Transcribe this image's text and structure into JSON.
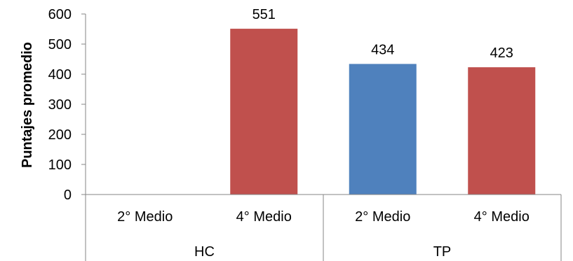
{
  "chart_data": {
    "type": "bar",
    "ylabel": "Puntajes promedio",
    "xlabel": "",
    "ylim": [
      0,
      600
    ],
    "yticks": [
      0,
      100,
      200,
      300,
      400,
      500,
      600
    ],
    "grid": false,
    "legend": "none",
    "groups": [
      "HC",
      "TP"
    ],
    "categories": [
      "2° Medio",
      "4° Medio",
      "2° Medio",
      "4° Medio"
    ],
    "category_group": [
      "HC",
      "HC",
      "TP",
      "TP"
    ],
    "values": [
      null,
      551,
      434,
      423
    ],
    "data_labels": [
      "",
      "551",
      "434",
      "423"
    ],
    "bar_colors": [
      "#4F81BD",
      "#C0504D",
      "#4F81BD",
      "#C0504D"
    ]
  }
}
